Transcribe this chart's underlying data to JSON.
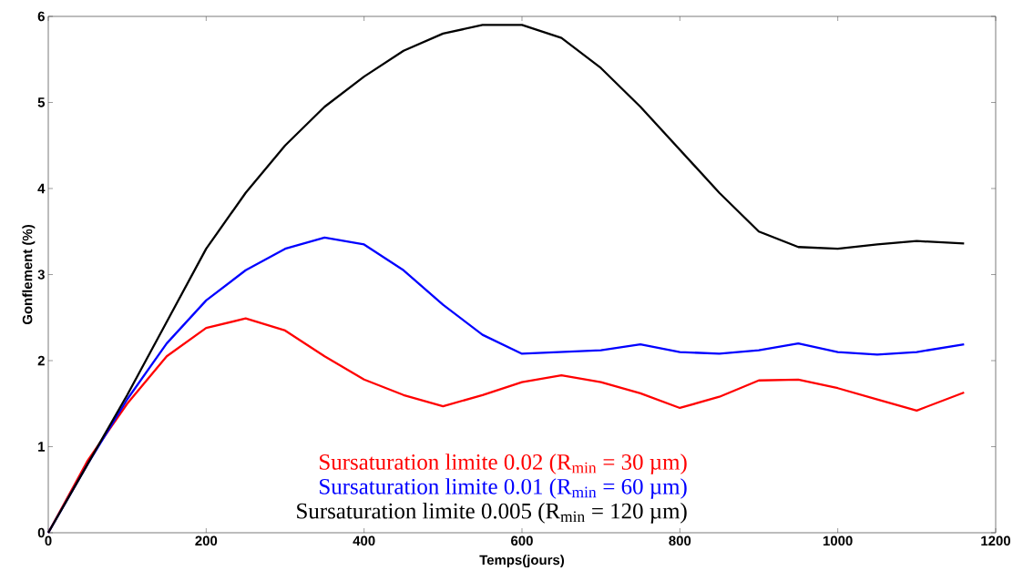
{
  "chart_data": {
    "type": "line",
    "xlabel": "Temps(jours)",
    "ylabel": "Gonflement (%)",
    "xlim": [
      0,
      1200
    ],
    "ylim": [
      0,
      6
    ],
    "xticks": [
      0,
      200,
      400,
      600,
      800,
      1000,
      1200
    ],
    "yticks": [
      0,
      1,
      2,
      3,
      4,
      5,
      6
    ],
    "grid": false,
    "legend": "bottom",
    "marker": "none",
    "line_style": "solid",
    "x": [
      0,
      50,
      100,
      150,
      200,
      250,
      300,
      350,
      400,
      450,
      500,
      550,
      600,
      650,
      700,
      750,
      800,
      850,
      900,
      950,
      1000,
      1050,
      1100,
      1160
    ],
    "series": [
      {
        "name": "Sursaturation limite 0.02 (R$_{min}$ = 30 µm)",
        "color": "#ff0000",
        "values": [
          0,
          0.84,
          1.5,
          2.05,
          2.38,
          2.49,
          2.35,
          2.05,
          1.78,
          1.6,
          1.47,
          1.6,
          1.75,
          1.83,
          1.75,
          1.62,
          1.45,
          1.58,
          1.77,
          1.78,
          1.68,
          1.55,
          1.42,
          1.63
        ]
      },
      {
        "name": "Sursaturation limite 0.01 (R$_{min}$ = 60 µm)",
        "color": "#0000ff",
        "values": [
          0,
          0.8,
          1.55,
          2.2,
          2.7,
          3.05,
          3.3,
          3.43,
          3.35,
          3.05,
          2.65,
          2.3,
          2.08,
          2.1,
          2.12,
          2.19,
          2.1,
          2.08,
          2.12,
          2.2,
          2.1,
          2.07,
          2.1,
          2.19
        ]
      },
      {
        "name": "Sursaturation limite 0.005 (R$_{min}$ = 120 µm)",
        "color": "#000000",
        "values": [
          0,
          0.8,
          1.6,
          2.45,
          3.3,
          3.95,
          4.5,
          4.95,
          5.3,
          5.6,
          5.8,
          5.9,
          5.9,
          5.75,
          5.4,
          4.95,
          4.45,
          3.95,
          3.5,
          3.32,
          3.3,
          3.35,
          3.39,
          3.36
        ]
      }
    ]
  }
}
